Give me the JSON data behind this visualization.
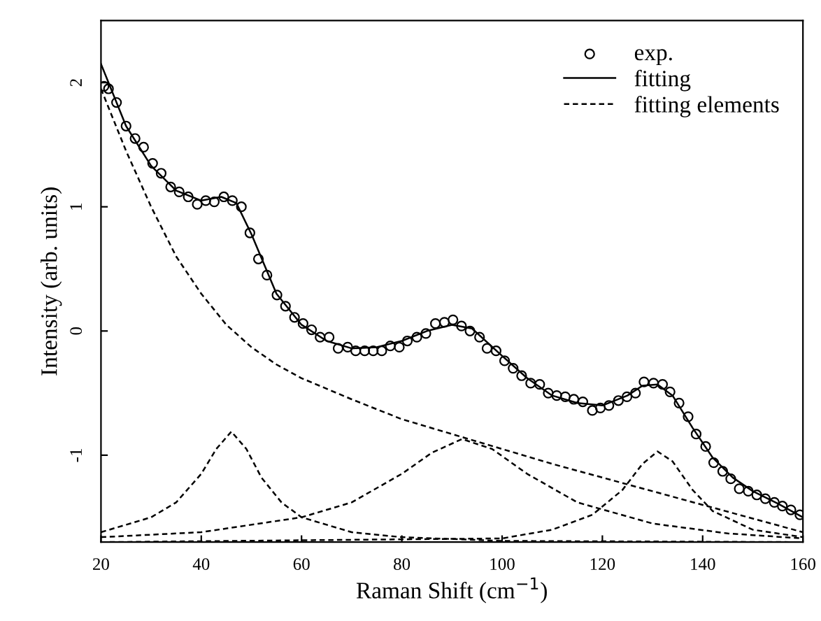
{
  "chart_data": {
    "type": "line",
    "xlabel": "Raman Shift (cm$^{−1}$)",
    "ylabel": "Intensity (arb. units)",
    "xlim": [
      20,
      160
    ],
    "ylim": [
      -1.7,
      2.5
    ],
    "xticks": [
      20,
      40,
      60,
      80,
      100,
      120,
      140,
      160
    ],
    "yticks": [
      -1,
      0,
      1,
      2
    ],
    "grid": false,
    "legend": "top right",
    "series": [
      {
        "type": "scatter",
        "name": "exp.",
        "color": "#000000",
        "marker": "circle",
        "x": [
          20.6,
          21.5,
          23.1,
          25.0,
          26.8,
          28.5,
          30.3,
          32.0,
          33.9,
          35.6,
          37.4,
          39.2,
          40.9,
          42.6,
          44.5,
          46.2,
          48.0,
          49.7,
          51.4,
          53.1,
          55.1,
          56.8,
          58.6,
          60.3,
          62.0,
          63.7,
          65.5,
          67.3,
          69.2,
          70.8,
          72.6,
          74.3,
          76.0,
          77.7,
          79.5,
          81.1,
          83.0,
          84.8,
          86.7,
          88.5,
          90.2,
          91.9,
          93.6,
          95.5,
          97.0,
          98.8,
          100.5,
          102.2,
          103.9,
          105.7,
          107.5,
          109.2,
          110.9,
          112.6,
          114.3,
          116.1,
          118.0,
          119.6,
          121.3,
          123.2,
          124.9,
          126.6,
          128.3,
          130.2,
          132.0,
          133.5,
          135.3,
          137.1,
          138.7,
          140.6,
          142.2,
          144.0,
          145.6,
          147.3,
          149.1,
          150.8,
          152.5,
          154.3,
          155.9,
          157.6,
          159.4
        ],
        "values": [
          1.97,
          1.95,
          1.84,
          1.65,
          1.55,
          1.48,
          1.35,
          1.27,
          1.16,
          1.12,
          1.08,
          1.02,
          1.05,
          1.04,
          1.08,
          1.05,
          1.0,
          0.79,
          0.58,
          0.45,
          0.29,
          0.2,
          0.11,
          0.06,
          0.01,
          -0.05,
          -0.05,
          -0.14,
          -0.13,
          -0.16,
          -0.16,
          -0.16,
          -0.16,
          -0.12,
          -0.13,
          -0.08,
          -0.05,
          -0.02,
          0.06,
          0.07,
          0.09,
          0.04,
          0.0,
          -0.05,
          -0.14,
          -0.16,
          -0.24,
          -0.3,
          -0.36,
          -0.42,
          -0.43,
          -0.5,
          -0.52,
          -0.53,
          -0.55,
          -0.57,
          -0.64,
          -0.62,
          -0.6,
          -0.56,
          -0.53,
          -0.5,
          -0.41,
          -0.42,
          -0.43,
          -0.49,
          -0.58,
          -0.69,
          -0.83,
          -0.93,
          -1.06,
          -1.13,
          -1.19,
          -1.27,
          -1.29,
          -1.32,
          -1.35,
          -1.38,
          -1.41,
          -1.44,
          -1.48
        ]
      },
      {
        "name": "fitting",
        "color": "#000000",
        "line_style": "solid",
        "x": [
          20,
          25,
          30,
          35,
          40,
          44,
          47,
          50,
          55,
          60,
          65,
          70,
          75,
          80,
          85,
          90,
          94,
          100,
          105,
          110,
          115,
          120,
          125,
          128,
          131,
          134,
          138,
          142,
          146,
          150,
          155,
          160
        ],
        "values": [
          2.15,
          1.65,
          1.33,
          1.13,
          1.05,
          1.08,
          1.03,
          0.78,
          0.3,
          0.05,
          -0.08,
          -0.14,
          -0.13,
          -0.08,
          0.0,
          0.05,
          0.02,
          -0.2,
          -0.38,
          -0.52,
          -0.58,
          -0.6,
          -0.52,
          -0.44,
          -0.43,
          -0.52,
          -0.78,
          -1.02,
          -1.18,
          -1.29,
          -1.39,
          -1.5
        ]
      },
      {
        "name": "fitting elements",
        "color": "#000000",
        "line_style": "dashed",
        "x": [
          20,
          25,
          30,
          35,
          40,
          45,
          50,
          55,
          60,
          70,
          80,
          90,
          100,
          110,
          120,
          130,
          140,
          150,
          160
        ],
        "values": [
          1.95,
          1.45,
          1.0,
          0.6,
          0.3,
          0.05,
          -0.13,
          -0.27,
          -0.38,
          -0.55,
          -0.71,
          -0.83,
          -0.95,
          -1.07,
          -1.18,
          -1.29,
          -1.4,
          -1.51,
          -1.62
        ]
      },
      {
        "color": "#000000",
        "line_style": "dashed",
        "x": [
          20,
          30,
          35,
          40,
          43,
          46,
          49,
          52,
          56,
          60,
          70,
          80,
          100,
          160
        ],
        "values": [
          -1.62,
          -1.5,
          -1.38,
          -1.15,
          -0.95,
          -0.81,
          -0.95,
          -1.18,
          -1.38,
          -1.5,
          -1.62,
          -1.66,
          -1.69,
          -1.7
        ]
      },
      {
        "color": "#000000",
        "line_style": "dashed",
        "x": [
          20,
          40,
          60,
          70,
          80,
          86,
          92,
          98,
          105,
          115,
          130,
          145,
          160
        ],
        "values": [
          -1.66,
          -1.62,
          -1.5,
          -1.38,
          -1.15,
          -0.98,
          -0.87,
          -0.95,
          -1.15,
          -1.38,
          -1.55,
          -1.63,
          -1.67
        ]
      },
      {
        "color": "#000000",
        "line_style": "dashed",
        "x": [
          20,
          100,
          110,
          118,
          124,
          128,
          131,
          134,
          138,
          142,
          150,
          160
        ],
        "values": [
          -1.7,
          -1.67,
          -1.6,
          -1.48,
          -1.28,
          -1.07,
          -0.97,
          -1.05,
          -1.28,
          -1.45,
          -1.6,
          -1.66
        ]
      }
    ]
  }
}
